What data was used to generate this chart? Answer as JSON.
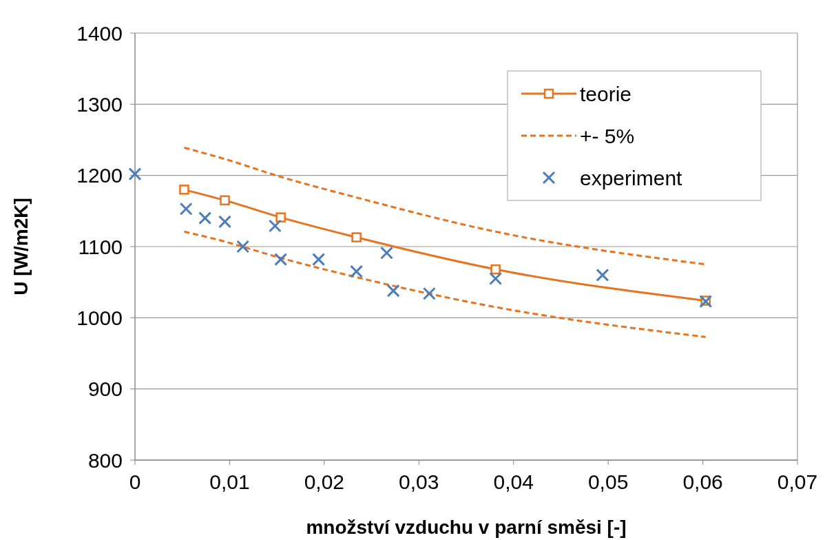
{
  "chart_data": {
    "type": "line",
    "xlabel": "množství vzduchu v parní směsi [-]",
    "ylabel": "U [W/m2K]",
    "xlim": [
      0,
      0.07
    ],
    "xticks": [
      {
        "value": 0,
        "label": "0"
      },
      {
        "value": 0.01,
        "label": "0,01"
      },
      {
        "value": 0.02,
        "label": "0,02"
      },
      {
        "value": 0.03,
        "label": "0,03"
      },
      {
        "value": 0.04,
        "label": "0,04"
      },
      {
        "value": 0.05,
        "label": "0,05"
      },
      {
        "value": 0.06,
        "label": "0,06"
      },
      {
        "value": 0.07,
        "label": "0,07"
      }
    ],
    "ylim": [
      800,
      1400
    ],
    "yticks": [
      800,
      900,
      1000,
      1100,
      1200,
      1300,
      1400
    ],
    "grid": "y",
    "legend": "top right",
    "series": [
      {
        "name": "teorie",
        "color": "#e8731f",
        "marker": "square",
        "line_style": "solid",
        "x": [
          0.0052,
          0.0095,
          0.0154,
          0.0234,
          0.0381,
          0.0603
        ],
        "values": [
          1180,
          1165,
          1141,
          1113,
          1068,
          1024
        ]
      },
      {
        "name": "+- 5%",
        "color": "#e8731f",
        "marker": "none",
        "line_style": "dashed",
        "x": [
          0.0052,
          0.0095,
          0.0154,
          0.0234,
          0.0381,
          0.0603
        ],
        "values": [
          1239,
          1223,
          1198,
          1169,
          1121,
          1075
        ]
      },
      {
        "color": "#e8731f",
        "marker": "none",
        "line_style": "dashed",
        "x": [
          0.0052,
          0.0095,
          0.0154,
          0.0234,
          0.0381,
          0.0603
        ],
        "values": [
          1121,
          1107,
          1084,
          1057,
          1015,
          973
        ]
      },
      {
        "name": "experiment",
        "type": "scatter",
        "color": "#4a7ebb",
        "marker": "cross",
        "x": [
          0,
          0.0054,
          0.0074,
          0.0095,
          0.0114,
          0.0148,
          0.0154,
          0.0194,
          0.0234,
          0.0266,
          0.0273,
          0.0311,
          0.0381,
          0.0494,
          0.0603
        ],
        "values": [
          1202,
          1153,
          1140,
          1135,
          1100,
          1129,
          1082,
          1082,
          1065,
          1091,
          1038,
          1034,
          1055,
          1060,
          1023
        ]
      }
    ]
  }
}
